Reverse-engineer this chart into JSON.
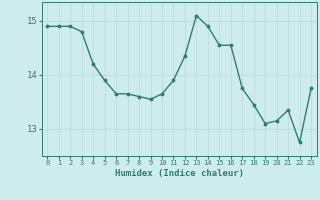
{
  "x": [
    0,
    1,
    2,
    3,
    4,
    5,
    6,
    7,
    8,
    9,
    10,
    11,
    12,
    13,
    14,
    15,
    16,
    17,
    18,
    19,
    20,
    21,
    22,
    23
  ],
  "y": [
    14.9,
    14.9,
    14.9,
    14.8,
    14.2,
    13.9,
    13.65,
    13.65,
    13.6,
    13.55,
    13.65,
    13.9,
    14.35,
    15.1,
    14.9,
    14.55,
    14.55,
    13.75,
    13.45,
    13.1,
    13.15,
    13.35,
    12.75,
    13.75
  ],
  "line_color": "#2e7d6e",
  "marker_color": "#2e7d6e",
  "bg_color": "#ceecea",
  "grid_color": "#b8dbd8",
  "axis_color": "#2e7d6e",
  "tick_color": "#2e7d6e",
  "xlabel": "Humidex (Indice chaleur)",
  "xlabel_color": "#2e7d6e",
  "ylim": [
    12.5,
    15.35
  ],
  "yticks": [
    13,
    14,
    15
  ],
  "xlim": [
    -0.5,
    23.5
  ]
}
